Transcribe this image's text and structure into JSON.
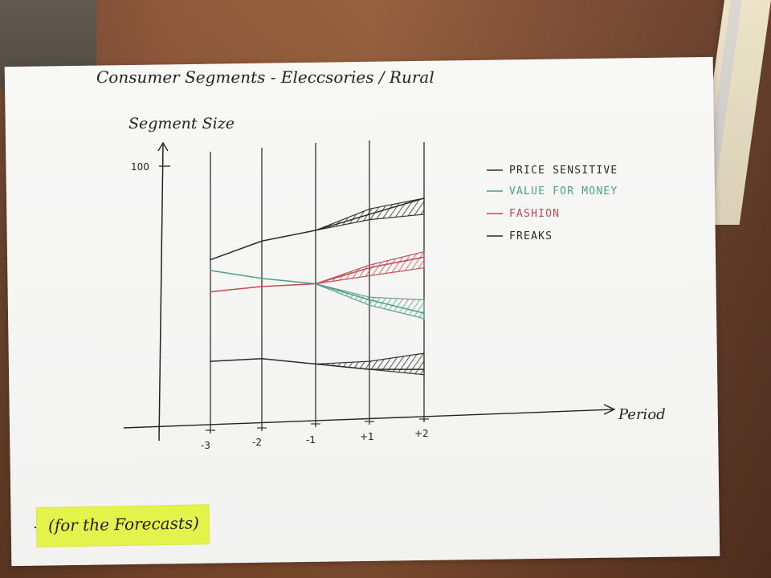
{
  "chart_data": {
    "type": "area",
    "title": "Consumer Segments - Eleccsories / Rural",
    "xlabel": "Period",
    "ylabel": "Segment Size",
    "x_ticks": [
      "-3",
      "-2",
      "-1",
      "+1",
      "+2"
    ],
    "y_ticks": [
      "100"
    ],
    "grid": true,
    "legend_position": "right",
    "series": [
      {
        "name": "PRICE SENSITIVE",
        "color": "#2a2a2a",
        "values": [
          65,
          72,
          76,
          82,
          88
        ],
        "band_upper": [
          null,
          null,
          76,
          84,
          88
        ],
        "band_lower": [
          null,
          null,
          76,
          80,
          82
        ]
      },
      {
        "name": "VALUE FOR MONEY",
        "color": "#4f9e86",
        "values": [
          61,
          58,
          56,
          50,
          45
        ],
        "band_upper": [
          null,
          null,
          56,
          51,
          50
        ],
        "band_lower": [
          null,
          null,
          56,
          48,
          43
        ]
      },
      {
        "name": "FASHION",
        "color": "#c24a52",
        "values": [
          53,
          55,
          56,
          62,
          66
        ],
        "band_upper": [
          null,
          null,
          56,
          63,
          68
        ],
        "band_lower": [
          null,
          null,
          56,
          59,
          62
        ]
      },
      {
        "name": "FREAKS",
        "color": "#2a2a2a",
        "values": [
          27,
          28,
          26,
          24,
          24
        ],
        "band_upper": [
          null,
          null,
          26,
          27,
          30
        ],
        "band_lower": [
          null,
          null,
          26,
          24,
          22
        ]
      }
    ]
  },
  "note": "(for the Forecasts)"
}
